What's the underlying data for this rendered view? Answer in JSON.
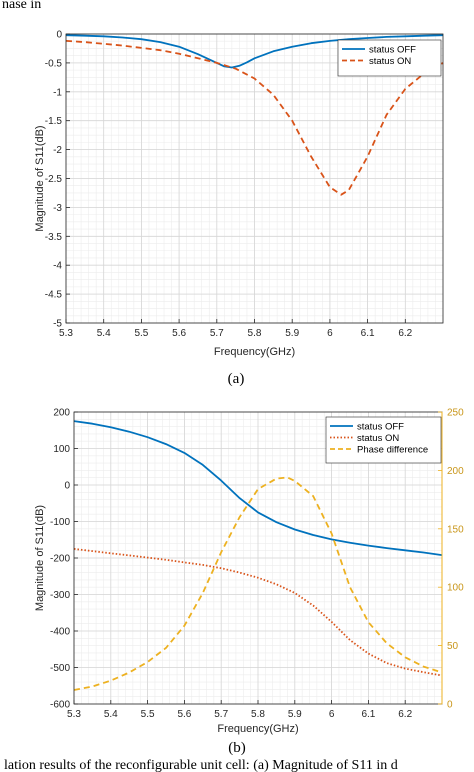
{
  "top_fragment": "nase in",
  "bottom_fragment": "lation results of the reconfigurable unit cell: (a) Magnitude of S11 in d",
  "chart_data": [
    {
      "type": "line",
      "panel_label": "(a)",
      "xlabel": "Frequency(GHz)",
      "ylabel": "Magnitude of S11(dB)",
      "xlim": [
        5.3,
        6.3
      ],
      "ylim": [
        -5,
        0
      ],
      "xticks": [
        "5.3",
        "5.4",
        "5.5",
        "5.6",
        "5.7",
        "5.8",
        "5.9",
        "6",
        "6.1",
        "6.2"
      ],
      "yticks": [
        "0",
        "-0.5",
        "-1",
        "-1.5",
        "-2",
        "-2.5",
        "-3",
        "-3.5",
        "-4",
        "-4.5",
        "-5"
      ],
      "grid": true,
      "minor_grid": true,
      "legend_position": "top-right",
      "series": [
        {
          "name": "status OFF",
          "color": "#0072BD",
          "style": "solid",
          "x": [
            5.3,
            5.35,
            5.4,
            5.45,
            5.5,
            5.55,
            5.6,
            5.65,
            5.7,
            5.72,
            5.74,
            5.76,
            5.78,
            5.8,
            5.85,
            5.9,
            5.95,
            6.0,
            6.05,
            6.1,
            6.15,
            6.2,
            6.25,
            6.3
          ],
          "y": [
            -0.02,
            -0.03,
            -0.04,
            -0.06,
            -0.09,
            -0.14,
            -0.22,
            -0.35,
            -0.5,
            -0.56,
            -0.58,
            -0.55,
            -0.49,
            -0.42,
            -0.3,
            -0.22,
            -0.16,
            -0.12,
            -0.09,
            -0.07,
            -0.05,
            -0.04,
            -0.03,
            -0.02
          ]
        },
        {
          "name": "status ON",
          "color": "#D95319",
          "style": "dashed",
          "x": [
            5.3,
            5.35,
            5.4,
            5.45,
            5.5,
            5.55,
            5.6,
            5.65,
            5.7,
            5.75,
            5.8,
            5.85,
            5.9,
            5.95,
            6.0,
            6.03,
            6.05,
            6.1,
            6.15,
            6.2,
            6.25,
            6.3
          ],
          "y": [
            -0.12,
            -0.14,
            -0.17,
            -0.2,
            -0.24,
            -0.28,
            -0.34,
            -0.42,
            -0.5,
            -0.6,
            -0.77,
            -1.05,
            -1.5,
            -2.12,
            -2.65,
            -2.78,
            -2.7,
            -2.12,
            -1.4,
            -0.95,
            -0.68,
            -0.5
          ]
        }
      ]
    },
    {
      "type": "line",
      "panel_label": "(b)",
      "xlabel": "Frequency(GHz)",
      "ylabel": "Magnitude of S11(dB)",
      "xlim": [
        5.3,
        6.3
      ],
      "ylim": [
        -600,
        200
      ],
      "y2lim": [
        0,
        250
      ],
      "xticks": [
        "5.3",
        "5.4",
        "5.5",
        "5.6",
        "5.7",
        "5.8",
        "5.9",
        "6",
        "6.1",
        "6.2"
      ],
      "yticks": [
        "200",
        "100",
        "0",
        "-100",
        "-200",
        "-300",
        "-400",
        "-500",
        "-600"
      ],
      "y2ticks": [
        "250",
        "200",
        "150",
        "100",
        "50",
        "0"
      ],
      "grid": true,
      "minor_grid": true,
      "legend_position": "top-right",
      "series": [
        {
          "name": "status OFF",
          "color": "#0072BD",
          "style": "solid",
          "axis": "left",
          "x": [
            5.3,
            5.35,
            5.4,
            5.45,
            5.5,
            5.55,
            5.6,
            5.65,
            5.7,
            5.75,
            5.8,
            5.85,
            5.9,
            5.95,
            6.0,
            6.05,
            6.1,
            6.15,
            6.2,
            6.25,
            6.3
          ],
          "y": [
            175,
            168,
            158,
            146,
            131,
            112,
            88,
            55,
            12,
            -36,
            -75,
            -102,
            -122,
            -137,
            -149,
            -158,
            -166,
            -173,
            -179,
            -185,
            -192
          ]
        },
        {
          "name": "status ON",
          "color": "#D95319",
          "style": "dotted",
          "axis": "left",
          "x": [
            5.3,
            5.35,
            5.4,
            5.45,
            5.5,
            5.55,
            5.6,
            5.65,
            5.7,
            5.75,
            5.8,
            5.85,
            5.9,
            5.95,
            6.0,
            6.05,
            6.1,
            6.15,
            6.2,
            6.25,
            6.3
          ],
          "y": [
            -175,
            -181,
            -187,
            -193,
            -199,
            -205,
            -212,
            -219,
            -228,
            -240,
            -254,
            -272,
            -296,
            -330,
            -375,
            -425,
            -462,
            -488,
            -503,
            -513,
            -522
          ]
        },
        {
          "name": "Phase difference",
          "color": "#EDB120",
          "style": "dashed",
          "axis": "right",
          "x": [
            5.3,
            5.35,
            5.4,
            5.45,
            5.5,
            5.55,
            5.6,
            5.65,
            5.7,
            5.75,
            5.8,
            5.85,
            5.88,
            5.9,
            5.95,
            6.0,
            6.05,
            6.1,
            6.15,
            6.2,
            6.25,
            6.3
          ],
          "y": [
            12,
            15,
            20,
            27,
            36,
            48,
            67,
            95,
            130,
            160,
            184,
            193,
            194,
            191,
            178,
            146,
            100,
            70,
            52,
            40,
            32,
            27
          ]
        }
      ]
    }
  ]
}
